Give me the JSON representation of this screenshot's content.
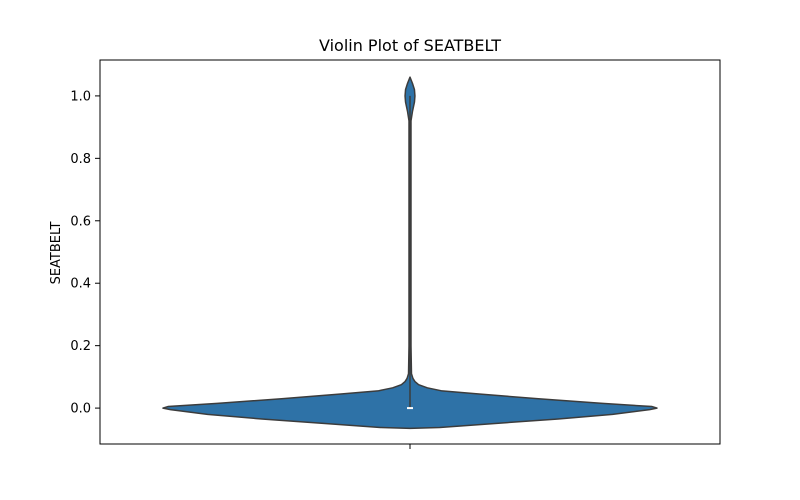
{
  "chart_data": {
    "type": "violin",
    "title": "Violin Plot of SEATBELT",
    "xlabel": "",
    "ylabel": "SEATBELT",
    "ylim": [
      -0.115,
      1.115
    ],
    "yticks": [
      0.0,
      0.2,
      0.4,
      0.6,
      0.8,
      1.0
    ],
    "ytick_labels": [
      "0.0",
      "0.2",
      "0.4",
      "0.6",
      "0.8",
      "1.0"
    ],
    "grid": false,
    "legend": "none",
    "categories": [
      ""
    ],
    "color": "#2e72a7",
    "edge_color": "#3c3c3c",
    "median": 0.0,
    "quartiles": [
      0.0,
      0.0
    ],
    "whiskers": [
      0.0,
      1.0
    ],
    "density_profile": [
      {
        "y": -0.065,
        "w": 0.0
      },
      {
        "y": -0.062,
        "w": 0.12
      },
      {
        "y": -0.05,
        "w": 0.33
      },
      {
        "y": -0.035,
        "w": 0.6
      },
      {
        "y": -0.02,
        "w": 0.82
      },
      {
        "y": -0.005,
        "w": 0.97
      },
      {
        "y": 0.0,
        "w": 1.0
      },
      {
        "y": 0.005,
        "w": 0.98
      },
      {
        "y": 0.015,
        "w": 0.78
      },
      {
        "y": 0.03,
        "w": 0.52
      },
      {
        "y": 0.045,
        "w": 0.28
      },
      {
        "y": 0.055,
        "w": 0.13
      },
      {
        "y": 0.065,
        "w": 0.07
      },
      {
        "y": 0.075,
        "w": 0.035
      },
      {
        "y": 0.085,
        "w": 0.02
      },
      {
        "y": 0.095,
        "w": 0.012
      },
      {
        "y": 0.11,
        "w": 0.006
      },
      {
        "y": 0.2,
        "w": 0.004
      },
      {
        "y": 0.5,
        "w": 0.004
      },
      {
        "y": 0.8,
        "w": 0.004
      },
      {
        "y": 0.92,
        "w": 0.004
      },
      {
        "y": 0.95,
        "w": 0.01
      },
      {
        "y": 0.98,
        "w": 0.018
      },
      {
        "y": 1.0,
        "w": 0.02
      },
      {
        "y": 1.02,
        "w": 0.018
      },
      {
        "y": 1.04,
        "w": 0.01
      },
      {
        "y": 1.06,
        "w": 0.0
      }
    ]
  }
}
